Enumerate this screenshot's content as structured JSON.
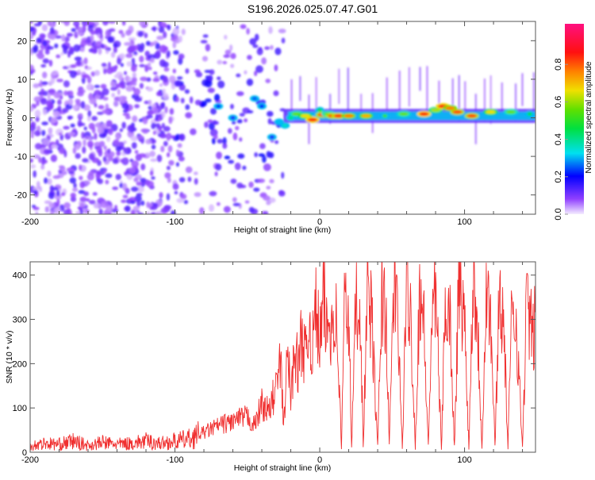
{
  "title": "S196.2026.025.07.47.G01",
  "chart_data": [
    {
      "type": "heatmap",
      "xlabel": "Height of straight line (km)",
      "ylabel": "Frequency (Hz)",
      "xlim": [
        -200,
        149
      ],
      "ylim": [
        -25,
        25
      ],
      "xticks": [
        -200,
        -100,
        0,
        100
      ],
      "yticks": [
        -20,
        -10,
        0,
        10,
        20
      ],
      "colorbar": {
        "label": "Normalized spectral amplitude",
        "range": [
          0,
          1
        ],
        "ticks": [
          "0.0",
          "0.2",
          "0.4",
          "0.6",
          "0.8"
        ]
      },
      "noise_region": {
        "x_range": [
          -200,
          -25
        ],
        "freq_range": [
          -25,
          25
        ],
        "amplitude_range": [
          0.02,
          0.15
        ]
      },
      "ridge": [
        [
          -45,
          5,
          0.25
        ],
        [
          -40,
          3,
          0.2
        ],
        [
          -70,
          3,
          0.22
        ],
        [
          -60,
          0,
          0.18
        ],
        [
          -33,
          -5,
          0.18
        ],
        [
          -28,
          -1,
          0.3
        ],
        [
          -24,
          -2,
          0.35
        ],
        [
          -20,
          0,
          0.4
        ],
        [
          -16,
          1,
          0.55
        ],
        [
          -10,
          0.5,
          0.65
        ],
        [
          -5,
          -0.5,
          0.85
        ],
        [
          0,
          2,
          0.45
        ],
        [
          2,
          0.8,
          0.8
        ],
        [
          6,
          1,
          0.55
        ],
        [
          9,
          0.5,
          0.8
        ],
        [
          13,
          0.5,
          0.82
        ],
        [
          20,
          0.5,
          0.75
        ],
        [
          32,
          0.5,
          0.7
        ],
        [
          45,
          0.5,
          0.5
        ],
        [
          58,
          1,
          0.55
        ],
        [
          72,
          1,
          0.85
        ],
        [
          80,
          2,
          0.6
        ],
        [
          85,
          3,
          0.85
        ],
        [
          90,
          2.5,
          0.75
        ],
        [
          95,
          1.5,
          0.8
        ],
        [
          105,
          0.5,
          0.8
        ],
        [
          118,
          1.5,
          0.65
        ],
        [
          132,
          1.5,
          0.55
        ],
        [
          145,
          1,
          0.45
        ]
      ]
    },
    {
      "type": "line",
      "xlabel": "Height of straight line (km)",
      "ylabel": "SNR (10 * v/v)",
      "xlim": [
        -200,
        149
      ],
      "ylim": [
        0,
        430
      ],
      "xticks": [
        -200,
        -100,
        0,
        100
      ],
      "yticks": [
        0,
        100,
        200,
        300,
        400
      ],
      "color": "#f03030",
      "x": [
        -200,
        -190,
        -180,
        -170,
        -160,
        -150,
        -140,
        -130,
        -120,
        -110,
        -100,
        -90,
        -80,
        -70,
        -60,
        -50,
        -45,
        -40,
        -35,
        -30,
        -27,
        -25,
        -22,
        -20,
        -17,
        -15,
        -12,
        -10,
        -7,
        -5,
        -3,
        0,
        3,
        5,
        8,
        10,
        12,
        15,
        17,
        20,
        22,
        25,
        28,
        30,
        33,
        36,
        40,
        43,
        46,
        48,
        51,
        54,
        57,
        60,
        63,
        66,
        69,
        72,
        75,
        78,
        81,
        84,
        87,
        90,
        93,
        96,
        100,
        103,
        106,
        109,
        112,
        115,
        118,
        121,
        124,
        127,
        130,
        133,
        136,
        140,
        143,
        147,
        149
      ],
      "y": [
        15,
        20,
        18,
        25,
        15,
        22,
        18,
        20,
        25,
        20,
        25,
        30,
        45,
        60,
        70,
        80,
        60,
        110,
        90,
        150,
        200,
        60,
        230,
        120,
        250,
        180,
        280,
        200,
        300,
        220,
        330,
        250,
        340,
        270,
        300,
        320,
        280,
        10,
        330,
        310,
        10,
        350,
        330,
        10,
        380,
        290,
        10,
        370,
        300,
        10,
        380,
        290,
        10,
        370,
        300,
        10,
        380,
        280,
        10,
        370,
        290,
        10,
        360,
        300,
        10,
        380,
        300,
        10,
        420,
        290,
        10,
        380,
        300,
        10,
        370,
        290,
        10,
        360,
        280,
        10,
        350,
        250,
        300
      ]
    }
  ]
}
